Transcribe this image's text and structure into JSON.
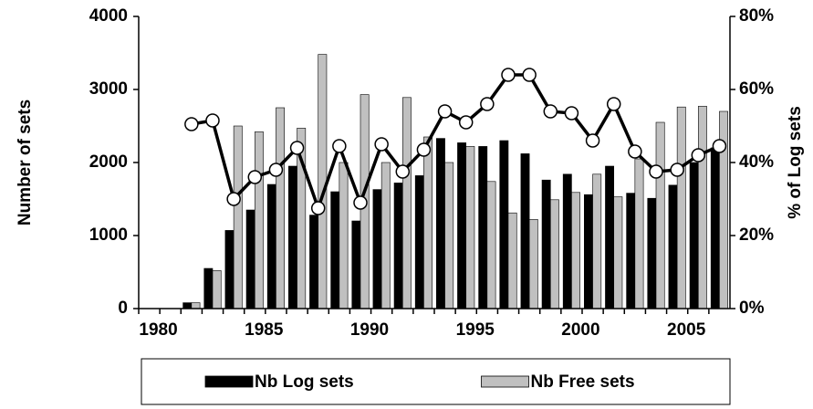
{
  "chart_data": {
    "type": "bar-line",
    "y_label": "Number of sets",
    "y2_label": "% of Log sets",
    "categories": [
      "1980",
      null,
      null,
      null,
      null,
      "1985",
      null,
      null,
      null,
      null,
      "1990",
      null,
      null,
      null,
      null,
      "1995",
      null,
      null,
      null,
      null,
      "2000",
      null,
      null,
      null,
      null,
      "2005",
      null,
      null
    ],
    "series": [
      {
        "name": "Nb Log sets",
        "type": "bar",
        "color": "#000000",
        "values": [
          0,
          0,
          80,
          550,
          1070,
          1350,
          1700,
          1950,
          1280,
          1600,
          1200,
          1630,
          1720,
          1820,
          2330,
          2270,
          2220,
          2300,
          2120,
          1760,
          1840,
          1560,
          1950,
          1580,
          1510,
          1690,
          2000,
          2200
        ]
      },
      {
        "name": "Nb Free sets",
        "type": "bar",
        "color": "#c0c0c0",
        "values": [
          0,
          0,
          80,
          520,
          2500,
          2420,
          2750,
          2470,
          3480,
          2000,
          2930,
          2000,
          2890,
          2350,
          2000,
          2220,
          1740,
          1310,
          1220,
          1490,
          1590,
          1840,
          1530,
          2050,
          2550,
          2760,
          2770,
          2700
        ]
      },
      {
        "type": "line",
        "axis": "y2",
        "color": "#000000",
        "values": [
          null,
          null,
          50.5,
          51.5,
          30,
          36,
          38,
          44,
          27.5,
          44.5,
          29,
          45,
          37.5,
          43.5,
          54,
          51,
          56,
          64,
          64,
          54,
          53.5,
          46,
          56,
          43,
          37.5,
          38,
          42,
          44.5
        ]
      }
    ],
    "ylim": [
      0,
      4000
    ],
    "yticks": [
      0,
      1000,
      2000,
      3000,
      4000
    ],
    "y2lim": [
      0,
      80
    ],
    "y2ticks": [
      {
        "value": 0,
        "label": "0%"
      },
      {
        "value": 20,
        "label": "20%"
      },
      {
        "value": 40,
        "label": "40%"
      },
      {
        "value": 60,
        "label": "60%"
      },
      {
        "value": 80,
        "label": "80%"
      }
    ],
    "legend": "bottom"
  }
}
